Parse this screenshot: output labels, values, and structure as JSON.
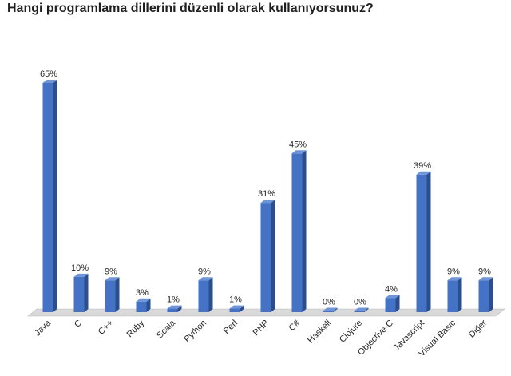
{
  "title": "Hangi programlama dillerini düzenli olarak kullanıyorsunuz?",
  "colors": {
    "bar_front": "#4472C4",
    "bar_side": "#2B4E8C",
    "bar_top": "#6F95D8",
    "floor": "#d9d9d9"
  },
  "chart_data": {
    "type": "bar",
    "title": "Hangi programlama dillerini düzenli olarak kullanıyorsunuz?",
    "categories": [
      "Java",
      "C",
      "C++",
      "Ruby",
      "Scala",
      "Python",
      "Perl",
      "PHP",
      "C#",
      "Haskell",
      "Clojure",
      "Objective-C",
      "Javascript",
      "Visual Basic",
      "Diğer"
    ],
    "values": [
      65,
      10,
      9,
      3,
      1,
      9,
      1,
      31,
      45,
      0,
      0,
      4,
      39,
      9,
      9
    ],
    "data_labels": [
      "65%",
      "10%",
      "9%",
      "3%",
      "1%",
      "9%",
      "1%",
      "31%",
      "45%",
      "0%",
      "0%",
      "4%",
      "39%",
      "9%",
      "9%"
    ],
    "xlabel": "",
    "ylabel": "",
    "ylim": [
      0,
      65
    ],
    "grid": false,
    "legend": "none",
    "style": "3d-column"
  }
}
